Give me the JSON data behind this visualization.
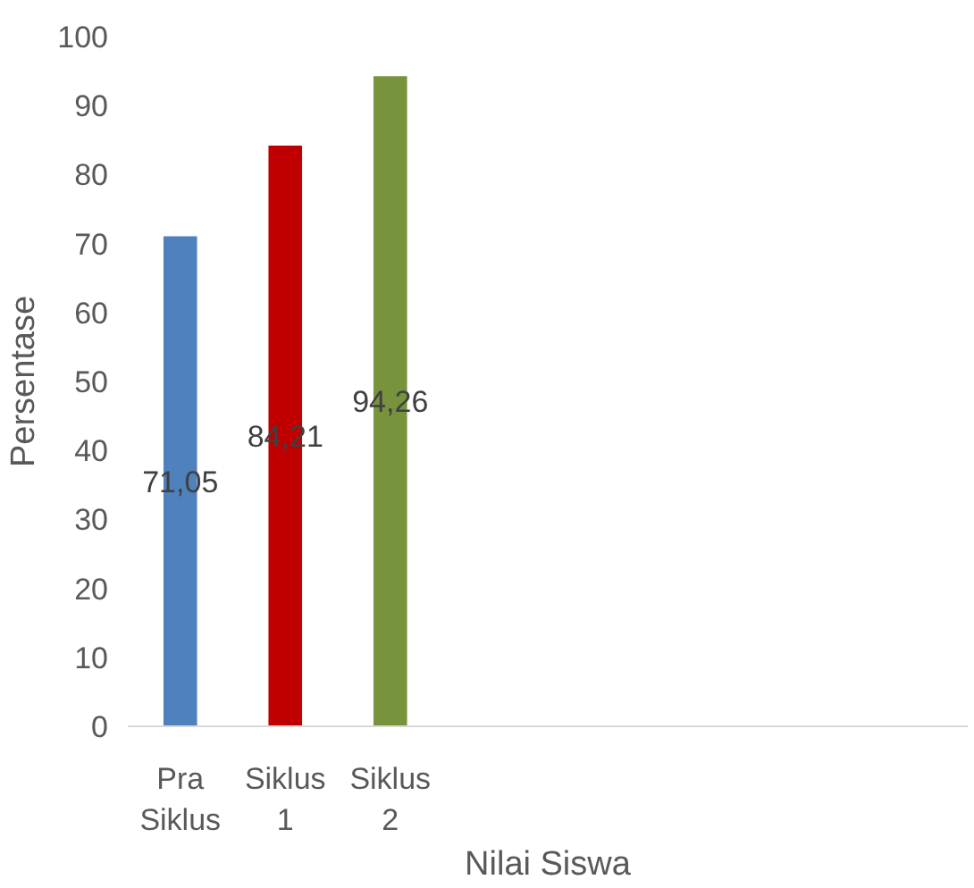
{
  "chart_data": {
    "type": "bar",
    "xlabel": "Nilai Siswa",
    "ylabel": "Persentase",
    "categories": [
      "Pra Siklus",
      "Siklus 1",
      "Siklus 2",
      null,
      null,
      null,
      null,
      null
    ],
    "values": [
      71.05,
      84.21,
      94.26,
      null,
      null,
      null,
      null,
      null
    ],
    "colors": [
      "#4f81bd",
      "#c00000",
      "#77933c",
      null,
      null,
      null,
      null,
      null
    ],
    "value_labels": [
      "71,05",
      "84,21",
      "94,26",
      null,
      null,
      null,
      null,
      null
    ],
    "ylim": [
      0,
      100
    ],
    "yticks": [
      0,
      10,
      20,
      30,
      40,
      50,
      60,
      70,
      80,
      90,
      100
    ],
    "grid": false
  }
}
